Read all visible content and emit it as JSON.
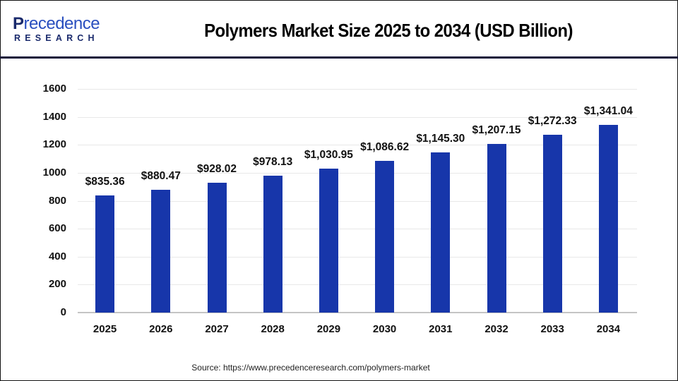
{
  "header": {
    "logo": {
      "brand_main_initial": "P",
      "brand_main_rest": "recedence",
      "brand_sub": "RESEARCH"
    },
    "title": "Polymers Market Size 2025 to 2034 (USD Billion)"
  },
  "footer": {
    "source": "Source: https://www.precedenceresearch.com/polymers-market"
  },
  "colors": {
    "bar": "#1736AA",
    "separator": "#12123A",
    "grid": "#E8E8E8"
  },
  "chart_data": {
    "type": "bar",
    "title": "Polymers Market Size 2025 to 2034 (USD Billion)",
    "xlabel": "",
    "ylabel": "",
    "categories": [
      "2025",
      "2026",
      "2027",
      "2028",
      "2029",
      "2030",
      "2031",
      "2032",
      "2033",
      "2034"
    ],
    "values": [
      835.36,
      880.47,
      928.02,
      978.13,
      1030.95,
      1086.62,
      1145.3,
      1207.15,
      1272.33,
      1341.04
    ],
    "value_labels": [
      "$835.36",
      "$880.47",
      "$928.02",
      "$978.13",
      "$1,030.95",
      "$1,086.62",
      "$1,145.30",
      "$1,207.15",
      "$1,272.33",
      "$1,341.04"
    ],
    "yticks": [
      "0",
      "200",
      "400",
      "600",
      "800",
      "1000",
      "1200",
      "1400",
      "1600"
    ],
    "ylim": [
      0,
      1600
    ],
    "grid": true,
    "legend": null
  }
}
